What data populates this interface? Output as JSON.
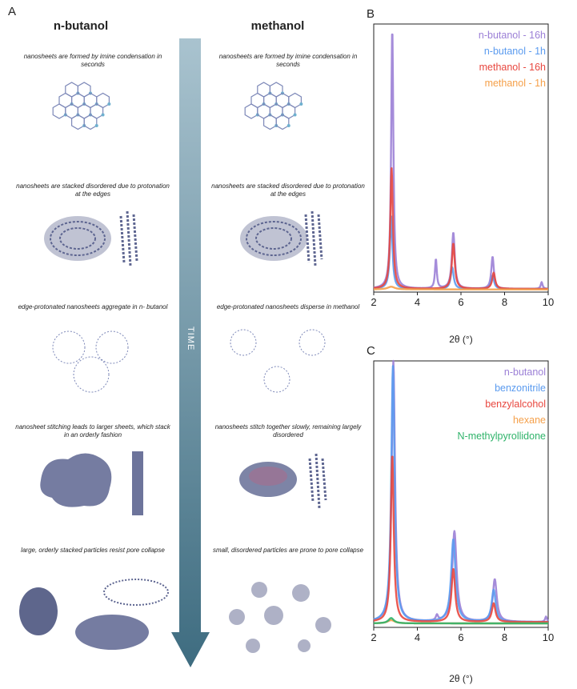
{
  "panel_a": {
    "label": "A",
    "left_header": "n-butanol",
    "right_header": "methanol",
    "arrow_label": "TIME",
    "left_steps": [
      {
        "text": "nanosheets are formed by imine condensation in seconds"
      },
      {
        "text": "nanosheets are stacked  disordered due to protonation at the edges"
      },
      {
        "text": "edge-protonated nanosheets aggregate in n- butanol"
      },
      {
        "text": "nanosheet stitching leads to larger sheets, which stack in an orderly fashion"
      },
      {
        "text": "large, orderly stacked particles resist pore collapse"
      }
    ],
    "right_steps": [
      {
        "text": "nanosheets are formed by imine condensation in seconds"
      },
      {
        "text": "nanosheets are stacked  disordered due to protonation at the edges"
      },
      {
        "text": "edge-protonated nanosheets disperse  in methanol"
      },
      {
        "text": "nanosheets stitch together slowly, remaining largely disordered"
      },
      {
        "text": "small, disordered particles are prone to pore collapse"
      }
    ]
  },
  "chart_data": [
    {
      "panel": "B",
      "type": "line",
      "xlabel": "2θ (°)",
      "ylabel": "",
      "xlim": [
        2,
        10
      ],
      "xticks": [
        2,
        4,
        6,
        8,
        10
      ],
      "legend_position": "top-right",
      "series": [
        {
          "name": "n-butanol - 16h",
          "color": "#9b7fd6",
          "baseline": 0.012,
          "peaks": [
            {
              "x": 2.85,
              "h": 0.975,
              "w": 0.06
            },
            {
              "x": 4.85,
              "h": 0.11,
              "w": 0.05
            },
            {
              "x": 5.65,
              "h": 0.21,
              "w": 0.08
            },
            {
              "x": 7.45,
              "h": 0.12,
              "w": 0.07
            },
            {
              "x": 9.7,
              "h": 0.025,
              "w": 0.05
            }
          ]
        },
        {
          "name": "n-butanol - 1h",
          "color": "#5b9bef",
          "baseline": 0.012,
          "peaks": [
            {
              "x": 2.8,
              "h": 0.27,
              "w": 0.07
            },
            {
              "x": 5.6,
              "h": 0.08,
              "w": 0.08
            },
            {
              "x": 7.45,
              "h": 0.05,
              "w": 0.08
            }
          ]
        },
        {
          "name": "methanol - 16h",
          "color": "#e8473f",
          "baseline": 0.012,
          "peaks": [
            {
              "x": 2.82,
              "h": 0.45,
              "w": 0.07
            },
            {
              "x": 5.65,
              "h": 0.17,
              "w": 0.08
            },
            {
              "x": 7.5,
              "h": 0.06,
              "w": 0.08
            }
          ]
        },
        {
          "name": "methanol - 1h",
          "color": "#f5a04a",
          "baseline": 0.01,
          "peaks": [
            {
              "x": 2.8,
              "h": 0.01,
              "w": 0.2
            }
          ]
        }
      ]
    },
    {
      "panel": "C",
      "type": "line",
      "xlabel": "2θ (°)",
      "ylabel": "",
      "xlim": [
        2,
        10
      ],
      "xticks": [
        2,
        4,
        6,
        8,
        10
      ],
      "legend_position": "top-right",
      "series": [
        {
          "name": "n-butanol",
          "color": "#9b7fd6",
          "baseline": 0.02,
          "peaks": [
            {
              "x": 2.9,
              "h": 0.985,
              "w": 0.09
            },
            {
              "x": 4.9,
              "h": 0.02,
              "w": 0.06
            },
            {
              "x": 5.7,
              "h": 0.34,
              "w": 0.12
            },
            {
              "x": 7.55,
              "h": 0.16,
              "w": 0.11
            },
            {
              "x": 9.9,
              "h": 0.02,
              "w": 0.05
            }
          ]
        },
        {
          "name": "benzonitrile",
          "color": "#5b9bef",
          "baseline": 0.02,
          "peaks": [
            {
              "x": 2.88,
              "h": 0.96,
              "w": 0.09
            },
            {
              "x": 5.65,
              "h": 0.31,
              "w": 0.12
            },
            {
              "x": 7.5,
              "h": 0.12,
              "w": 0.11
            }
          ]
        },
        {
          "name": "benzylalcohol",
          "color": "#e8473f",
          "baseline": 0.02,
          "peaks": [
            {
              "x": 2.85,
              "h": 0.63,
              "w": 0.08
            },
            {
              "x": 5.65,
              "h": 0.2,
              "w": 0.1
            },
            {
              "x": 7.5,
              "h": 0.07,
              "w": 0.1
            }
          ]
        },
        {
          "name": "hexane",
          "color": "#f5a04a",
          "baseline": 0.015,
          "peaks": [
            {
              "x": 2.8,
              "h": 0.012,
              "w": 0.2
            }
          ]
        },
        {
          "name": "N-methylpyrollidone",
          "color": "#2fb36a",
          "baseline": 0.015,
          "peaks": [
            {
              "x": 2.8,
              "h": 0.02,
              "w": 0.15
            }
          ]
        }
      ]
    }
  ]
}
